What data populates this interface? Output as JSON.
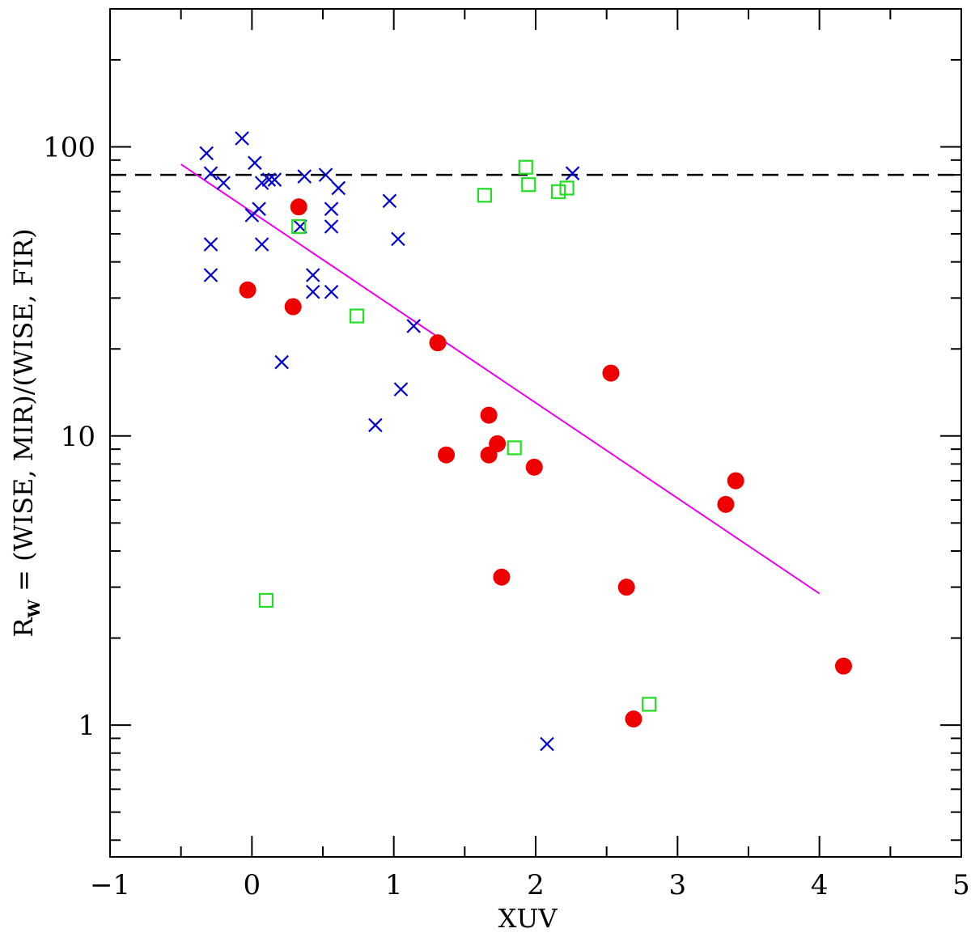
{
  "chart_data": {
    "type": "scatter",
    "title": "",
    "xlabel": "XUV",
    "ylabel": {
      "prefix": "R",
      "subscript": "W",
      "suffix": " = (WISE, MIR)/(WISE, FIR)"
    },
    "xlim": [
      -1,
      5
    ],
    "ylim": [
      0.35,
      300
    ],
    "yscale": "log",
    "x_ticks": [
      "-1",
      "0",
      "1",
      "2",
      "3",
      "4",
      "5"
    ],
    "y_ticks": [
      "1",
      "10",
      "100"
    ],
    "grid": false,
    "legend": "none",
    "series": [
      {
        "marker": "cross",
        "color": "#0000cc",
        "points": [
          [
            -0.32,
            95
          ],
          [
            -0.29,
            81
          ],
          [
            -0.2,
            75
          ],
          [
            -0.07,
            107
          ],
          [
            0.02,
            88
          ],
          [
            0.07,
            75
          ],
          [
            0.12,
            77
          ],
          [
            0.16,
            77
          ],
          [
            0.37,
            79
          ],
          [
            0.52,
            80
          ],
          [
            0.61,
            72
          ],
          [
            0.0,
            58
          ],
          [
            0.05,
            61
          ],
          [
            0.56,
            61
          ],
          [
            0.34,
            53
          ],
          [
            0.56,
            53
          ],
          [
            0.97,
            65
          ],
          [
            -0.29,
            46
          ],
          [
            0.07,
            46
          ],
          [
            1.03,
            48
          ],
          [
            -0.29,
            36
          ],
          [
            0.43,
            36
          ],
          [
            0.43,
            31.5
          ],
          [
            0.56,
            31.5
          ],
          [
            1.14,
            24
          ],
          [
            0.21,
            18
          ],
          [
            1.05,
            14.5
          ],
          [
            0.87,
            10.9
          ],
          [
            2.26,
            81
          ],
          [
            2.08,
            0.86
          ]
        ]
      },
      {
        "marker": "open-square",
        "color": "#22dd22",
        "points": [
          [
            1.93,
            85
          ],
          [
            1.95,
            74
          ],
          [
            2.16,
            70
          ],
          [
            2.22,
            72
          ],
          [
            1.64,
            68
          ],
          [
            0.33,
            53
          ],
          [
            0.74,
            26
          ],
          [
            1.85,
            9.1
          ],
          [
            0.1,
            2.7
          ],
          [
            2.8,
            1.18
          ]
        ]
      },
      {
        "marker": "filled-circle",
        "color": "#ee0000",
        "points": [
          [
            0.33,
            62
          ],
          [
            -0.03,
            32
          ],
          [
            0.29,
            28
          ],
          [
            1.31,
            21
          ],
          [
            2.53,
            16.5
          ],
          [
            1.67,
            11.8
          ],
          [
            1.73,
            9.4
          ],
          [
            1.67,
            8.6
          ],
          [
            1.37,
            8.6
          ],
          [
            1.99,
            7.8
          ],
          [
            3.41,
            7.0
          ],
          [
            3.34,
            5.8
          ],
          [
            1.76,
            3.25
          ],
          [
            2.64,
            3.0
          ],
          [
            2.69,
            1.05
          ],
          [
            4.17,
            1.6
          ]
        ]
      }
    ],
    "fit_line": {
      "color": "#ee00ee",
      "from": [
        -0.5,
        87
      ],
      "to": [
        4.0,
        2.85
      ]
    },
    "reference_line": {
      "y": 80,
      "style": "dashed",
      "color": "#000000"
    }
  }
}
